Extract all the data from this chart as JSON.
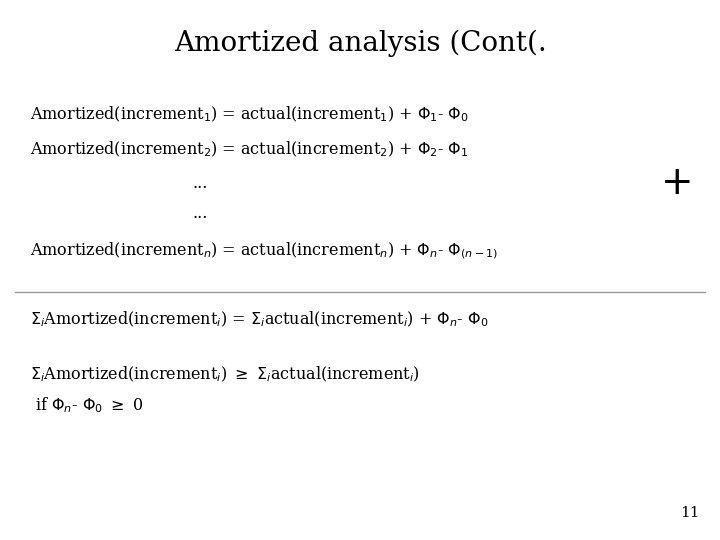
{
  "title": "Amortized analysis (Cont(.",
  "bg_color": "#ffffff",
  "text_color": "#000000",
  "title_fontsize": 20,
  "body_fontsize": 11.5,
  "slide_number": "11"
}
